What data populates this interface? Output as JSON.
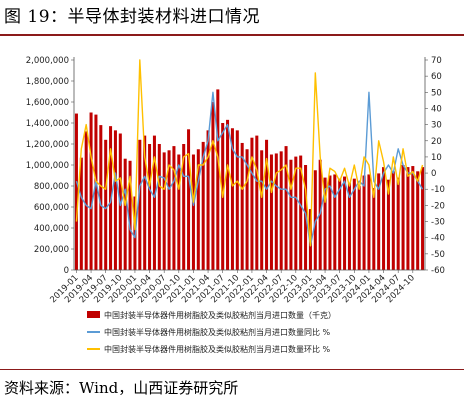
{
  "figure_title": "图 19：半导体封装材料进口情况",
  "source_text": "资料来源：Wind，山西证券研究所",
  "colors": {
    "bars": "#c00000",
    "yoy": "#5b9bd5",
    "mom": "#ffc000"
  },
  "chart_data": {
    "type": "bar",
    "title": "",
    "x_tick_labels": [
      "2019-01",
      "2019-04",
      "2019-07",
      "2019-10",
      "2020-01",
      "2020-04",
      "2020-07",
      "2020-10",
      "2021-01",
      "2021-04",
      "2021-07",
      "2021-10",
      "2022-01",
      "2022-04",
      "2022-07",
      "2022-10",
      "2023-01",
      "2023-04",
      "2023-07",
      "2023-10",
      "2024-01",
      "2024-04",
      "2024-07",
      "2024-10"
    ],
    "x_start": "2019-01",
    "x_end": "2024-12",
    "left_axis": {
      "min": 0,
      "max": 2000000,
      "step": 200000,
      "ticks": [
        "0",
        "200,000",
        "400,000",
        "600,000",
        "800,000",
        "1,000,000",
        "1,200,000",
        "1,400,000",
        "1,600,000",
        "1,800,000",
        "2,000,000"
      ]
    },
    "right_axis": {
      "min": -60,
      "max": 70,
      "step": 10,
      "ticks": [
        "-60",
        "-50",
        "-40",
        "-30",
        "-20",
        "-10",
        "0",
        "10",
        "20",
        "30",
        "40",
        "50",
        "60",
        "70"
      ]
    },
    "legend": [
      "中国封装半导体器件用树脂胶及类似胶粘剂当月进口数量（千克）",
      "中国封装半导体器件用树脂胶及类似胶粘剂当月进口数量同比 %",
      "中国封装半导体器件用树脂胶及类似胶粘剂当月进口数量环比 %"
    ],
    "series": [
      {
        "type": "bar",
        "axis": "left",
        "values": [
          1490000,
          1070000,
          1320000,
          1500000,
          1480000,
          1380000,
          1240000,
          1370000,
          1330000,
          1300000,
          1060000,
          1040000,
          700000,
          1240000,
          1280000,
          1200000,
          1280000,
          1200000,
          1120000,
          1140000,
          1180000,
          1100000,
          1200000,
          1340000,
          1100000,
          1150000,
          1220000,
          1330000,
          1600000,
          1720000,
          1400000,
          1430000,
          1350000,
          1330000,
          1210000,
          1150000,
          1260000,
          1280000,
          1140000,
          1240000,
          1100000,
          1110000,
          1130000,
          1180000,
          1050000,
          1080000,
          1090000,
          1000000,
          580000,
          950000,
          1050000,
          880000,
          900000,
          910000,
          870000,
          890000,
          830000,
          870000,
          800000,
          900000,
          910000,
          780000,
          920000,
          980000,
          860000,
          940000,
          880000,
          1000000,
          980000,
          990000,
          940000,
          980000
        ]
      },
      {
        "type": "line",
        "axis": "right",
        "values": [
          -5,
          -15,
          -20,
          -22,
          -5,
          -20,
          -22,
          -18,
          0,
          -20,
          -10,
          -35,
          -40,
          -8,
          -2,
          -10,
          -15,
          -2,
          -3,
          -10,
          -5,
          5,
          -2,
          -2,
          -20,
          -5,
          10,
          20,
          50,
          20,
          25,
          30,
          15,
          10,
          10,
          5,
          0,
          -5,
          -5,
          -10,
          -5,
          -8,
          -10,
          -10,
          -15,
          -15,
          -20,
          -25,
          -45,
          -30,
          -25,
          -10,
          -8,
          -15,
          -10,
          -5,
          -15,
          -10,
          -5,
          -8,
          50,
          -5,
          -10,
          0,
          5,
          0,
          15,
          5,
          0,
          0,
          -5,
          -10
        ]
      },
      {
        "type": "line",
        "axis": "right",
        "values": [
          -30,
          15,
          30,
          10,
          -5,
          -8,
          -10,
          15,
          -5,
          -3,
          -20,
          -2,
          -35,
          70,
          10,
          -8,
          10,
          -8,
          -10,
          5,
          2,
          -10,
          10,
          12,
          -18,
          5,
          5,
          10,
          20,
          10,
          -15,
          5,
          -8,
          -5,
          -10,
          -5,
          10,
          2,
          -15,
          9,
          -12,
          0,
          2,
          5,
          -10,
          3,
          3,
          -10,
          -45,
          62,
          10,
          -18,
          3,
          1,
          -5,
          3,
          -8,
          5,
          -10,
          10,
          5,
          -15,
          20,
          7,
          -13,
          10,
          -7,
          15,
          -2,
          1,
          -5,
          5
        ]
      }
    ],
    "series_names": [],
    "grid": false,
    "legend_position": "bottom"
  }
}
